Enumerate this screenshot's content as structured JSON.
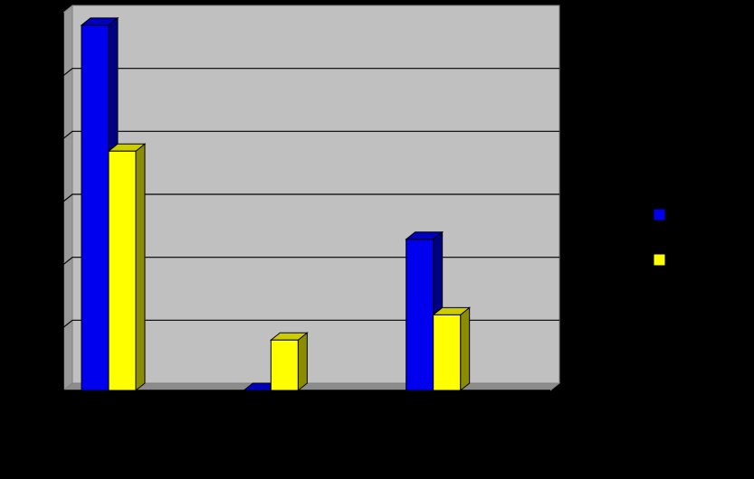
{
  "chart_data": {
    "type": "bar",
    "categories": [
      "",
      "",
      ""
    ],
    "series": [
      {
        "color": "#0000ee",
        "values": [
          5.8,
          0.0,
          2.4
        ]
      },
      {
        "color": "#ffff00",
        "values": [
          3.8,
          0.8,
          1.2
        ]
      }
    ],
    "ylim": [
      0,
      6
    ],
    "yticks": [
      0,
      1,
      2,
      3,
      4,
      5,
      6
    ],
    "grid": true,
    "legend": "right",
    "plot_background": "#c0c0c0",
    "background": "#000000"
  }
}
